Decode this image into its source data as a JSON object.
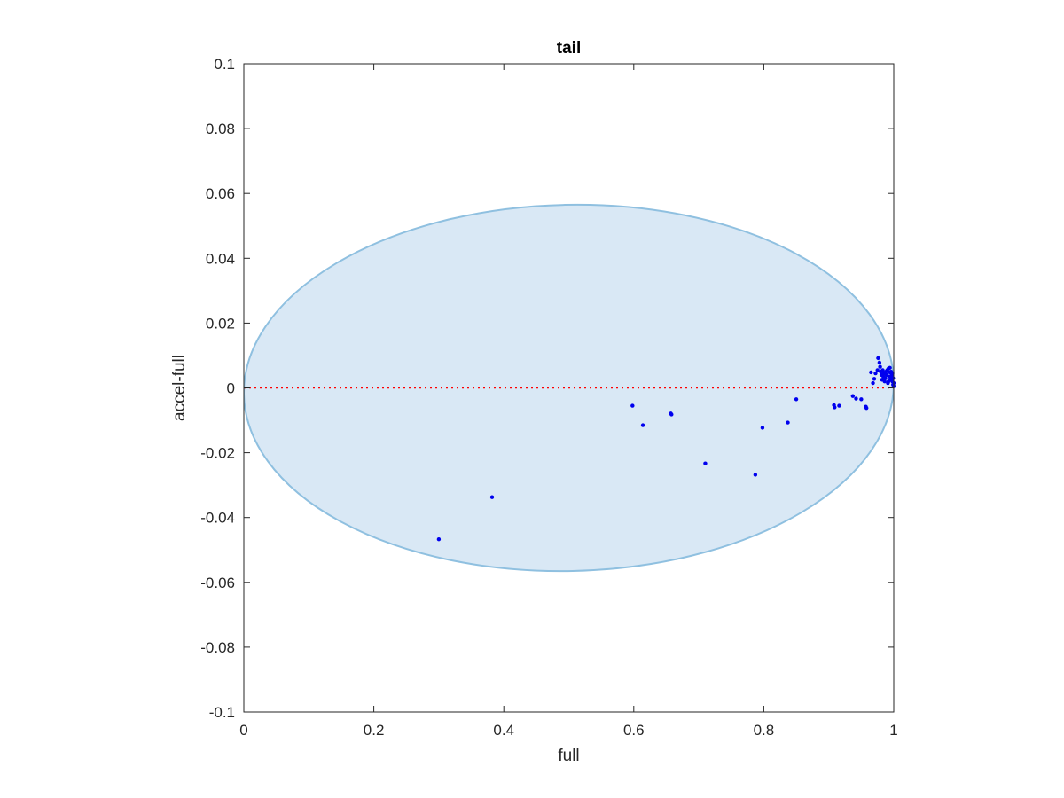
{
  "chart_data": {
    "type": "scatter",
    "title": "tail",
    "xlabel": "full",
    "ylabel": "accel-full",
    "xlim": [
      0,
      1
    ],
    "ylim": [
      -0.1,
      0.1
    ],
    "xticks": [
      0,
      0.2,
      0.4,
      0.6,
      0.8,
      1
    ],
    "xtick_labels": [
      "0",
      "0.2",
      "0.4",
      "0.6",
      "0.8",
      "1"
    ],
    "yticks": [
      -0.1,
      -0.08,
      -0.06,
      -0.04,
      -0.02,
      0,
      0.02,
      0.04,
      0.06,
      0.08,
      0.1
    ],
    "ytick_labels": [
      "-0.1",
      "-0.08",
      "-0.06",
      "-0.04",
      "-0.02",
      "0",
      "0.02",
      "0.04",
      "0.06",
      "0.08",
      "0.1"
    ],
    "grid": false,
    "reference_line": {
      "y": 0,
      "style": "dotted",
      "color": "#ff0000"
    },
    "ellipse": {
      "center": [
        0.5,
        0.0
      ],
      "semi_axis_x": 0.5,
      "semi_axis_y": 0.0565,
      "tilt_deg": -1.2,
      "fill": "#d9e8f5",
      "edge": "#8fc0e0"
    },
    "series": [
      {
        "color": "#0000ee",
        "points": [
          [
            0.3,
            -0.0467
          ],
          [
            0.382,
            -0.0337
          ],
          [
            0.598,
            -0.0055
          ],
          [
            0.614,
            -0.0115
          ],
          [
            0.657,
            -0.0079
          ],
          [
            0.658,
            -0.0082
          ],
          [
            0.71,
            -0.0233
          ],
          [
            0.787,
            -0.0268
          ],
          [
            0.798,
            -0.0123
          ],
          [
            0.837,
            -0.0107
          ],
          [
            0.85,
            -0.0035
          ],
          [
            0.908,
            -0.0053
          ],
          [
            0.909,
            -0.006
          ],
          [
            0.916,
            -0.0055
          ],
          [
            0.937,
            -0.0025
          ],
          [
            0.942,
            -0.0033
          ],
          [
            0.95,
            -0.0035
          ],
          [
            0.957,
            -0.0058
          ],
          [
            0.958,
            -0.0062
          ],
          [
            0.965,
            0.0048
          ],
          [
            0.968,
            0.0015
          ],
          [
            0.97,
            0.0028
          ],
          [
            0.972,
            0.0045
          ],
          [
            0.975,
            0.0055
          ],
          [
            0.976,
            0.0092
          ],
          [
            0.978,
            0.0078
          ],
          [
            0.979,
            0.0065
          ],
          [
            0.98,
            0.005
          ],
          [
            0.981,
            0.004
          ],
          [
            0.982,
            0.0025
          ],
          [
            0.983,
            0.0055
          ],
          [
            0.984,
            0.0035
          ],
          [
            0.985,
            0.0045
          ],
          [
            0.986,
            0.002
          ],
          [
            0.987,
            0.003
          ],
          [
            0.988,
            0.005
          ],
          [
            0.989,
            0.004
          ],
          [
            0.99,
            0.0055
          ],
          [
            0.991,
            0.0015
          ],
          [
            0.992,
            0.006
          ],
          [
            0.993,
            0.0035
          ],
          [
            0.994,
            0.0048
          ],
          [
            0.995,
            0.0025
          ],
          [
            0.996,
            0.005
          ],
          [
            0.997,
            0.004
          ],
          [
            0.998,
            0.002
          ],
          [
            0.999,
            0.001
          ],
          [
            0.999,
            0.003
          ],
          [
            1.0,
            0.0005
          ],
          [
            1.0,
            0.0015
          ],
          [
            0.994,
            0.0062
          ],
          [
            0.996,
            0.003
          ],
          [
            0.992,
            0.002
          ],
          [
            0.998,
            0.0045
          ]
        ]
      }
    ]
  }
}
